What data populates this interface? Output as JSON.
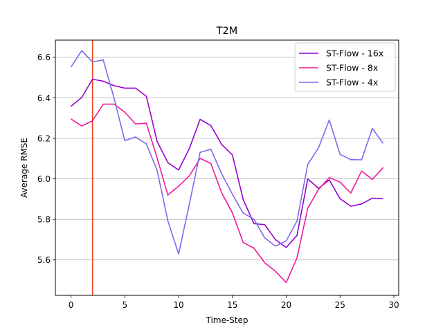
{
  "chart_data": {
    "type": "line",
    "title": "T2M",
    "xlabel": "Time-Step",
    "ylabel": "Average RMSE",
    "xlim": [
      -1.45,
      30.45
    ],
    "ylim": [
      5.425,
      6.685
    ],
    "xticks": [
      0,
      5,
      10,
      15,
      20,
      25,
      30
    ],
    "yticks": [
      5.6,
      5.8,
      6.0,
      6.2,
      6.4,
      6.6
    ],
    "xtick_labels": [
      "0",
      "5",
      "10",
      "15",
      "20",
      "25",
      "30"
    ],
    "ytick_labels": [
      "5.6",
      "5.8",
      "6.0",
      "6.2",
      "6.4",
      "6.6"
    ],
    "grid": "horizontal",
    "legend_position": "top-right",
    "vline": {
      "x": 2,
      "color": "#e8461c"
    },
    "x": [
      0,
      1,
      2,
      3,
      4,
      5,
      6,
      7,
      8,
      9,
      10,
      11,
      12,
      13,
      14,
      15,
      16,
      17,
      18,
      19,
      20,
      21,
      22,
      23,
      24,
      25,
      26,
      27,
      28,
      29
    ],
    "series": [
      {
        "name": "ST-Flow - 16x",
        "color": "#9400d3",
        "values": [
          6.358,
          6.402,
          6.492,
          6.482,
          6.46,
          6.448,
          6.448,
          6.408,
          6.186,
          6.08,
          6.044,
          6.15,
          6.294,
          6.263,
          6.17,
          6.118,
          5.898,
          5.779,
          5.774,
          5.7,
          5.661,
          5.721,
          6.0,
          5.953,
          5.995,
          5.902,
          5.865,
          5.876,
          5.905,
          5.902
        ]
      },
      {
        "name": "ST-Flow - 8x",
        "color": "#f0199a",
        "values": [
          6.296,
          6.261,
          6.287,
          6.369,
          6.369,
          6.329,
          6.271,
          6.275,
          6.104,
          5.92,
          5.964,
          6.015,
          6.101,
          6.076,
          5.931,
          5.832,
          5.686,
          5.658,
          5.586,
          5.544,
          5.488,
          5.61,
          5.855,
          5.948,
          6.006,
          5.984,
          5.93,
          6.039,
          5.997,
          6.056
        ]
      },
      {
        "name": "ST-Flow - 4x",
        "color": "#7b68ee",
        "values": [
          6.552,
          6.633,
          6.577,
          6.587,
          6.399,
          6.189,
          6.207,
          6.173,
          6.043,
          5.793,
          5.629,
          5.876,
          6.131,
          6.146,
          6.025,
          5.924,
          5.831,
          5.801,
          5.709,
          5.668,
          5.694,
          5.792,
          6.072,
          6.153,
          6.291,
          6.121,
          6.095,
          6.094,
          6.249,
          6.175
        ]
      }
    ]
  }
}
